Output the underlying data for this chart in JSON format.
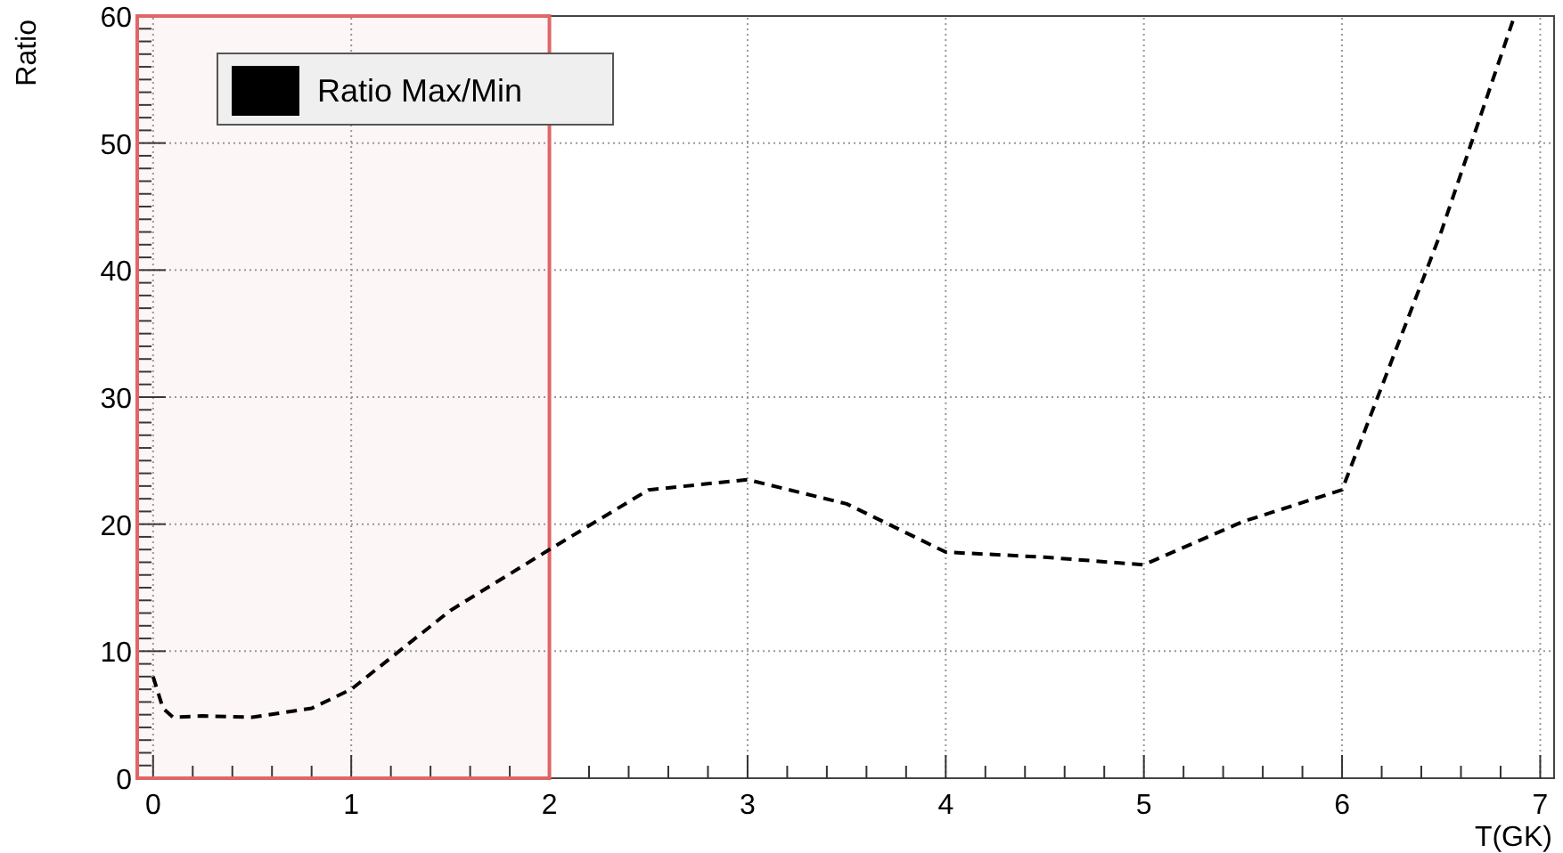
{
  "chart_data": {
    "type": "line",
    "xlabel": "T(GK)",
    "ylabel": "Ratio",
    "xlim": [
      -0.08,
      7.07
    ],
    "ylim": [
      0,
      60
    ],
    "xticks": [
      0,
      1,
      2,
      3,
      4,
      5,
      6,
      7
    ],
    "yticks": [
      0,
      10,
      20,
      30,
      40,
      50,
      60
    ],
    "series": [
      {
        "name": "Ratio Max/Min",
        "color": "#000000",
        "x": [
          0,
          0.05,
          0.1,
          0.25,
          0.5,
          0.8,
          1,
          1.5,
          2,
          2.5,
          3,
          3.5,
          4,
          4.5,
          5,
          5.5,
          6,
          6.5,
          6.87
        ],
        "values": [
          8,
          5.5,
          4.8,
          4.9,
          4.8,
          5.5,
          7,
          13.2,
          18,
          22.7,
          23.5,
          21.6,
          17.8,
          17.4,
          16.8,
          20.2,
          22.7,
          43,
          60
        ]
      }
    ],
    "bands": [
      {
        "axis": "x",
        "from": -0.08,
        "to": 2,
        "color": "#e06666"
      }
    ],
    "grid": true,
    "legend": "top left",
    "line_style": "dashed"
  }
}
